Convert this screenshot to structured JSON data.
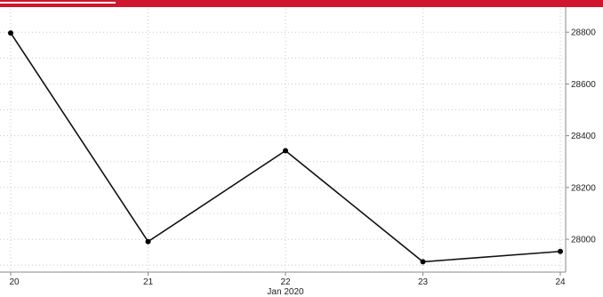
{
  "chart_data": {
    "type": "line",
    "x": [
      "20",
      "21",
      "22",
      "23",
      "24"
    ],
    "series": [
      {
        "values": [
          28797,
          27991,
          28342,
          27913,
          27953
        ]
      }
    ],
    "xlabel": "Jan 2020",
    "ylabel": "",
    "title": "",
    "ylim": [
      27880,
      28890
    ],
    "yticks": [
      28000,
      28200,
      28400,
      28600,
      28800
    ],
    "y_axis_side": "right",
    "grid": true,
    "grid_style": "dotted",
    "line_color": "#111111",
    "marker_color": "#000000",
    "header_bar_color": "#d0162f"
  }
}
